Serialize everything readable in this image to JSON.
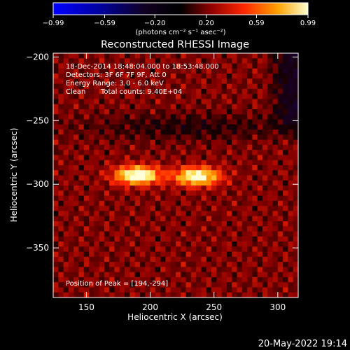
{
  "chart_data": {
    "type": "heatmap",
    "title": "Reconstructed RHESSI Image",
    "xlabel": "Heliocentric X (arcsec)",
    "ylabel": "Heliocentric Y (arcsec)",
    "xlim": [
      124,
      316
    ],
    "ylim": [
      -389,
      -197
    ],
    "x_ticks": [
      150,
      200,
      250,
      300
    ],
    "x_tick_labels": [
      "150",
      "200",
      "250",
      "300"
    ],
    "y_ticks": [
      -200,
      -250,
      -300,
      -350
    ],
    "y_tick_labels": [
      "−200",
      "−250",
      "−300",
      "−350"
    ],
    "colorbar": {
      "min": -0.99,
      "max": 0.99,
      "ticks": [
        -0.99,
        -0.59,
        -0.2,
        0.2,
        0.59,
        0.99
      ],
      "tick_labels": [
        "−0.99",
        "−0.59",
        "−0.20",
        "0.20",
        "0.59",
        "0.99"
      ],
      "unit_label": "(photons cm⁻² s⁻¹ asec⁻²)",
      "colormap": [
        "#0000ff",
        "#000040",
        "#000000",
        "#800000",
        "#ff2000",
        "#ffa000",
        "#ffffc0"
      ]
    },
    "annotations": {
      "time_range": "18-Dec-2014 18:48:04.000 to 18:53:48.000",
      "detectors": "Detectors: 3F 6F 7F 9F, Att 0",
      "energy": "Energy Range: 3.0 - 6.0 keV",
      "method": "Clean",
      "counts": "Total counts: 9.40E+04",
      "peak": "Position of Peak = [194,-294]"
    },
    "sources": [
      {
        "x": 190,
        "y": -293,
        "peak": 0.99
      },
      {
        "x": 237,
        "y": -294,
        "peak": 0.93
      }
    ],
    "background_level": 0.3,
    "footer_date": "20-May-2022 19:14"
  }
}
